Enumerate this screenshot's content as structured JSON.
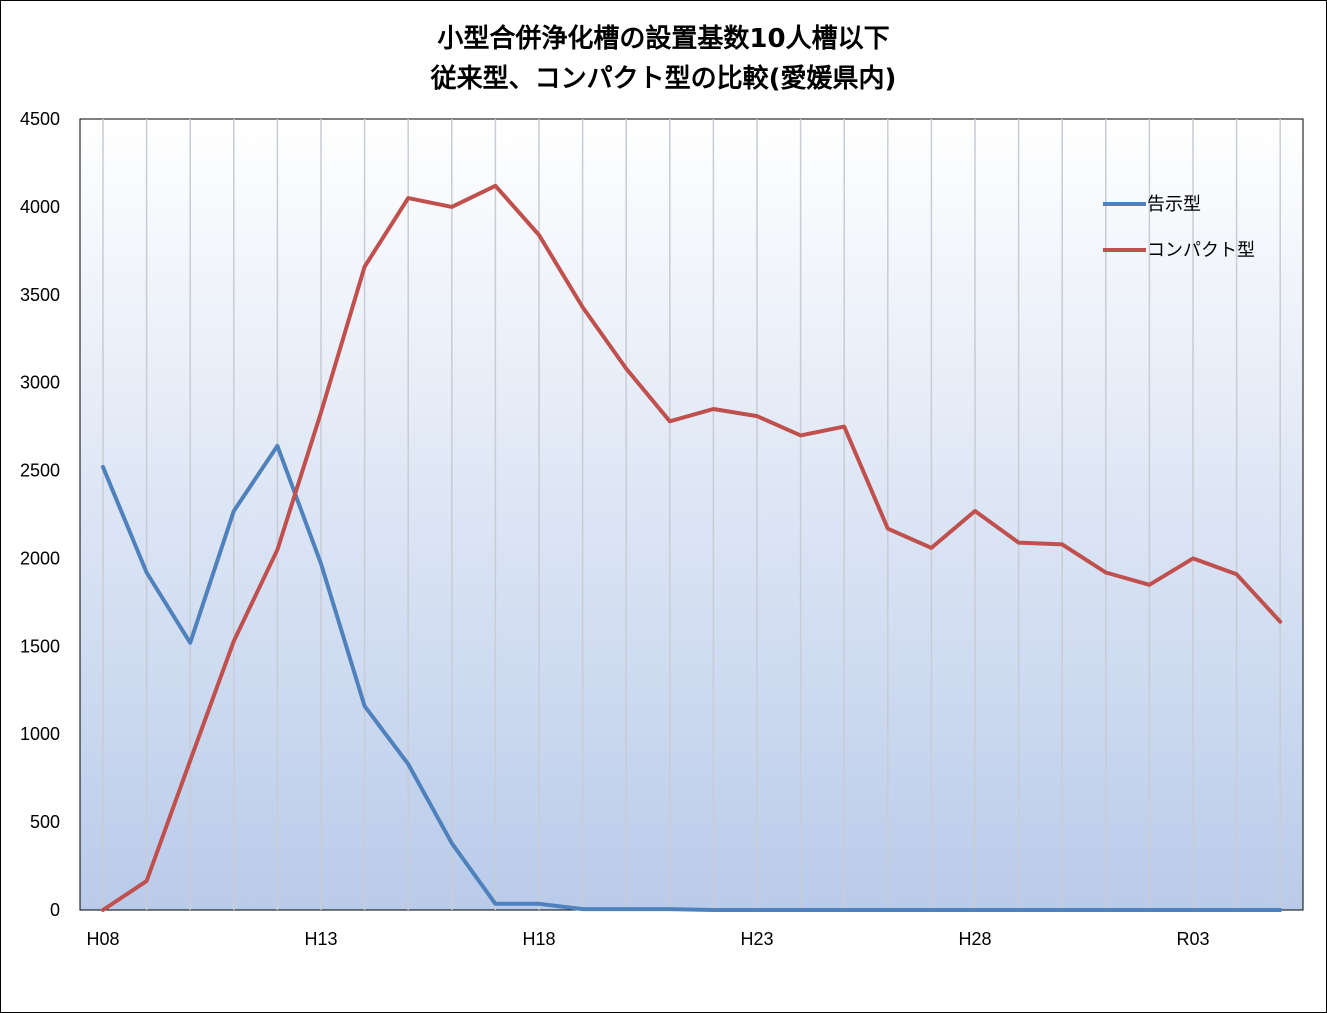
{
  "chart_data": {
    "type": "line",
    "title_line1": "小型合併浄化槽の設置基数10人槽以下",
    "title_line2": "従来型、コンパクト型の比較(愛媛県内)",
    "xlabel": "",
    "ylabel": "",
    "ylim": [
      0,
      4500
    ],
    "yticks": [
      0,
      500,
      1000,
      1500,
      2000,
      2500,
      3000,
      3500,
      4000,
      4500
    ],
    "categories": [
      "H08",
      "H09",
      "H10",
      "H11",
      "H12",
      "H13",
      "H14",
      "H15",
      "H16",
      "H17",
      "H18",
      "H19",
      "H20",
      "H21",
      "H22",
      "H23",
      "H24",
      "H25",
      "H26",
      "H27",
      "H28",
      "H29",
      "H30",
      "R01",
      "R02",
      "R03",
      "R04",
      "R05"
    ],
    "xtick_labels": [
      "H08",
      "H13",
      "H18",
      "H23",
      "H28",
      "R03"
    ],
    "xtick_indices": [
      0,
      5,
      10,
      15,
      20,
      25
    ],
    "series": [
      {
        "name": "告示型",
        "color": "#4F81BD",
        "values": [
          2520,
          1920,
          1520,
          2270,
          2640,
          1970,
          1160,
          830,
          380,
          35,
          35,
          5,
          5,
          5,
          0,
          0,
          0,
          0,
          0,
          0,
          0,
          0,
          0,
          0,
          0,
          0,
          0,
          0
        ]
      },
      {
        "name": "コンパクト型",
        "color": "#C0504D",
        "values": [
          0,
          165,
          850,
          1530,
          2050,
          2830,
          3660,
          4050,
          4000,
          4120,
          3840,
          3430,
          3080,
          2780,
          2850,
          2810,
          2700,
          2750,
          2170,
          2060,
          2270,
          2090,
          2080,
          1920,
          1850,
          2000,
          1910,
          1640
        ]
      }
    ],
    "grid": "vertical",
    "legend_position": "top-right"
  }
}
